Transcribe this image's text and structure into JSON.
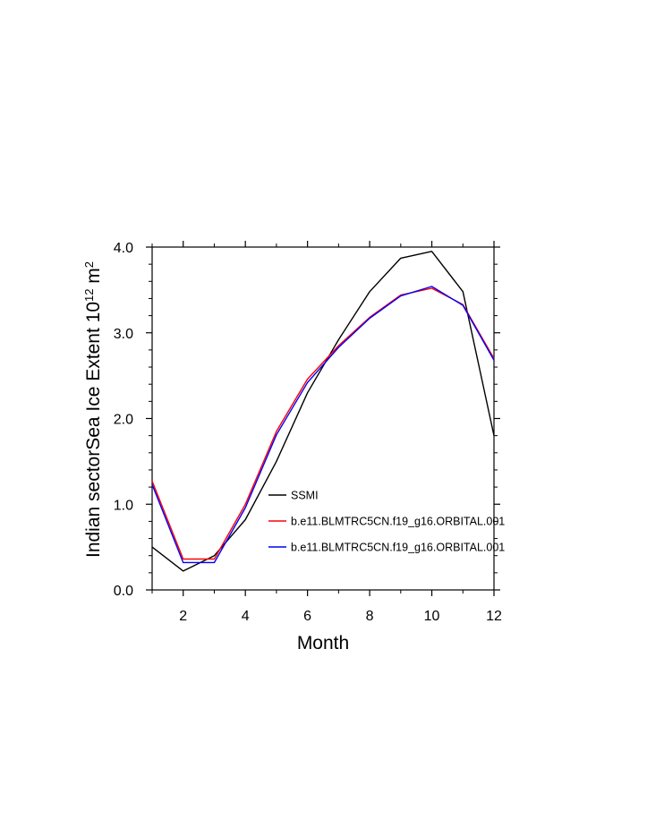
{
  "chart_data": {
    "type": "line",
    "xlabel": "Month",
    "ylabel_main": "Indian sectorSea Ice Extent 10",
    "ylabel_sup": "12",
    "ylabel_unit": " m",
    "ylabel_unit_sup": "2",
    "xlim": [
      1,
      12
    ],
    "ylim": [
      0.0,
      4.0
    ],
    "x_ticks": [
      2,
      4,
      6,
      8,
      10,
      12
    ],
    "y_ticks": [
      0.0,
      1.0,
      2.0,
      3.0,
      4.0
    ],
    "y_tick_labels": [
      "0.0",
      "1.0",
      "2.0",
      "3.0",
      "4.0"
    ],
    "legend_position": "lower-right",
    "x": [
      1,
      2,
      3,
      4,
      5,
      6,
      7,
      8,
      9,
      10,
      11,
      12
    ],
    "series": [
      {
        "name": "SSMI",
        "color": "#000000",
        "values": [
          0.5,
          0.22,
          0.4,
          0.82,
          1.5,
          2.3,
          2.92,
          3.48,
          3.87,
          3.95,
          3.48,
          1.8
        ]
      },
      {
        "name": "b.e11.BLMTRC5CN.f19_g16.ORBITAL.001",
        "color": "#ff0000",
        "values": [
          1.27,
          0.36,
          0.36,
          1.0,
          1.85,
          2.46,
          2.85,
          3.18,
          3.44,
          3.52,
          3.33,
          2.7
        ]
      },
      {
        "name": "b.e11.BLMTRC5CN.f19_g16.ORBITAL.001",
        "color": "#0000ff",
        "values": [
          1.23,
          0.32,
          0.32,
          0.96,
          1.81,
          2.42,
          2.83,
          3.17,
          3.43,
          3.54,
          3.32,
          2.68
        ]
      }
    ]
  }
}
